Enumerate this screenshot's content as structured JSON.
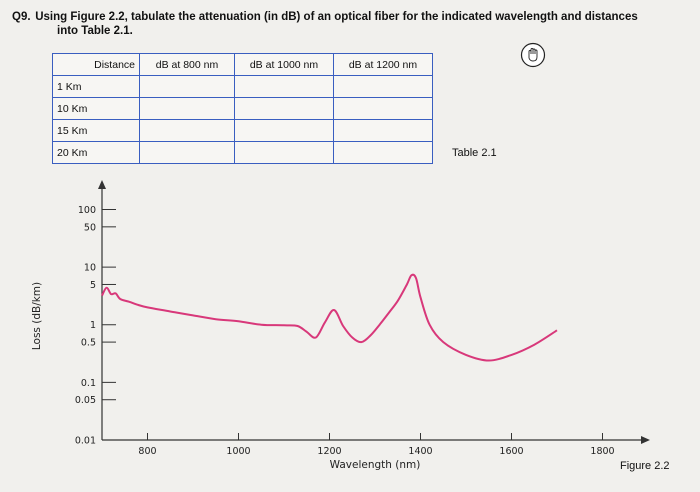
{
  "question": {
    "number": "Q9.",
    "text": "Using Figure 2.2, tabulate the attenuation (in dB) of an optical fiber for the indicated wavelength and distances",
    "continuation": "into Table 2.1."
  },
  "table": {
    "headers": [
      "Distance",
      "dB at 800 nm",
      "dB at 1000 nm",
      "dB at 1200 nm"
    ],
    "rows": [
      [
        "1 Km",
        "",
        "",
        ""
      ],
      [
        "10 Km",
        "",
        "",
        ""
      ],
      [
        "15 Km",
        "",
        "",
        ""
      ],
      [
        "20 Km",
        "",
        "",
        ""
      ]
    ],
    "caption": "Table 2.1",
    "border_color": "#3a5ec0"
  },
  "figure_caption": "Figure 2.2",
  "cursor_icon": "hand-pointer-icon",
  "chart_data": {
    "type": "line",
    "xlabel": "Wavelength (nm)",
    "ylabel": "Loss (dB/km)",
    "x_ticks": [
      800,
      1000,
      1200,
      1400,
      1600,
      1800
    ],
    "y_ticks": [
      "100",
      "50",
      "10",
      "5",
      "1",
      "0.5",
      "0.1",
      "0.05",
      "0.01"
    ],
    "y_tick_values": [
      100,
      50,
      10,
      5,
      1,
      0.5,
      0.1,
      0.05,
      0.01
    ],
    "y_scale": "log",
    "xlim": [
      700,
      1900
    ],
    "ylim": [
      0.01,
      300
    ],
    "line_color": "#d8387a",
    "series": [
      {
        "x": [
          700,
          710,
          720,
          730,
          740,
          760,
          780,
          800,
          850,
          900,
          950,
          1000,
          1050,
          1100,
          1130,
          1150,
          1170,
          1190,
          1210,
          1230,
          1250,
          1270,
          1290,
          1310,
          1330,
          1350,
          1370,
          1380,
          1390,
          1400,
          1420,
          1450,
          1500,
          1550,
          1600,
          1650,
          1700
        ],
        "y": [
          3.2,
          4.4,
          3.4,
          3.5,
          2.8,
          2.5,
          2.2,
          2.0,
          1.7,
          1.45,
          1.25,
          1.15,
          1.0,
          0.98,
          0.95,
          0.75,
          0.6,
          1.1,
          1.8,
          0.95,
          0.6,
          0.5,
          0.65,
          1.0,
          1.6,
          2.6,
          5.0,
          7.2,
          6.5,
          3.0,
          1.0,
          0.5,
          0.3,
          0.24,
          0.3,
          0.45,
          0.8
        ]
      }
    ]
  }
}
